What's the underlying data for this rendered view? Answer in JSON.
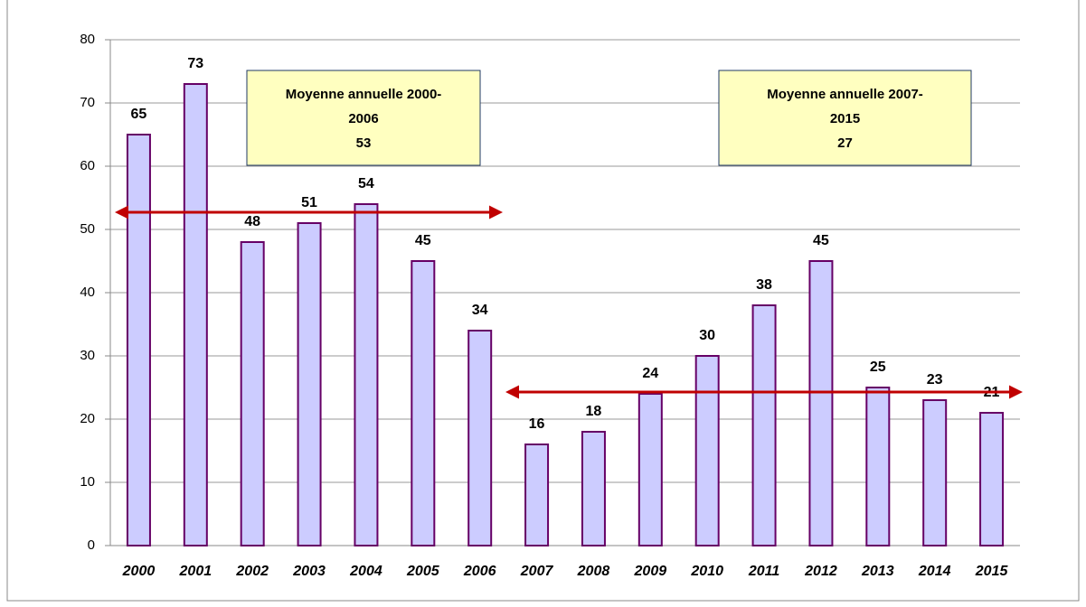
{
  "chart_data": {
    "type": "bar",
    "categories": [
      "2000",
      "2001",
      "2002",
      "2003",
      "2004",
      "2005",
      "2006",
      "2007",
      "2008",
      "2009",
      "2010",
      "2011",
      "2012",
      "2013",
      "2014",
      "2015"
    ],
    "values": [
      65,
      73,
      48,
      51,
      54,
      45,
      34,
      16,
      18,
      24,
      30,
      38,
      45,
      25,
      23,
      21
    ],
    "color": "#ccccff",
    "edge_color": "#660066",
    "ylim": [
      0,
      80
    ],
    "yticks": [
      0,
      10,
      20,
      30,
      40,
      50,
      60,
      70,
      80
    ],
    "grid": true,
    "annotations": [
      {
        "lines": [
          "Moyenne annuelle 2000-",
          "2006",
          "53"
        ]
      },
      {
        "lines": [
          "Moyenne annuelle 2007-",
          "2015",
          "27"
        ]
      }
    ]
  }
}
